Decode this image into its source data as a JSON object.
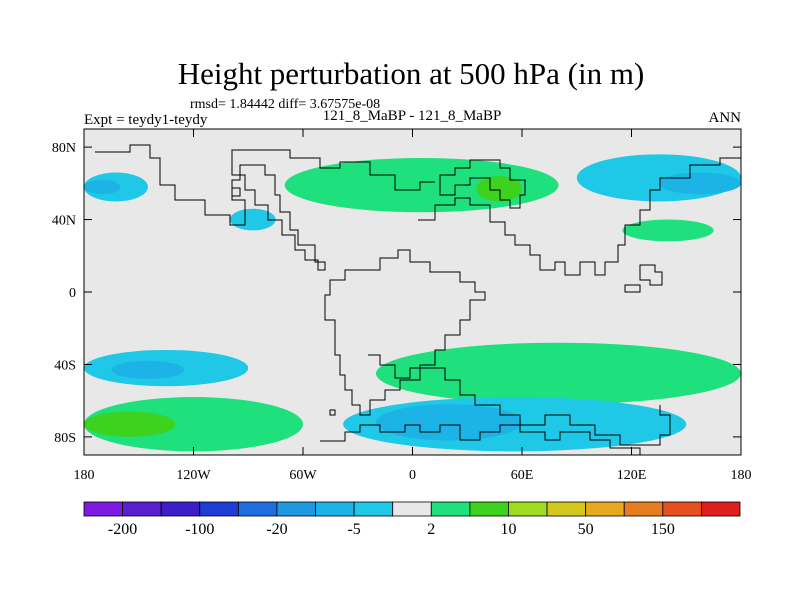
{
  "chart_data": {
    "type": "contour-map",
    "title": "Height perturbation at 500 hPa (in m)",
    "stats_line": "rmsd= 1.84442 diff= 3.67575e-08",
    "left_label": "Expt = teydy1-teydy",
    "center_label": "121_8_MaBP - 121_8_MaBP",
    "right_label": "ANN",
    "x_axis": {
      "range": [
        -180,
        180
      ],
      "ticks": [
        -180,
        -120,
        -60,
        0,
        60,
        120,
        180
      ],
      "tick_labels": [
        "180",
        "120W",
        "60W",
        "0",
        "60E",
        "120E",
        "180"
      ]
    },
    "y_axis": {
      "range": [
        -90,
        90
      ],
      "ticks": [
        80,
        40,
        0,
        -40,
        -80
      ],
      "tick_labels": [
        "80N",
        "40N",
        "0",
        "40S",
        "80S"
      ]
    },
    "colorbar": {
      "colors": [
        "#7d19e0",
        "#5a1fcf",
        "#3c1fc6",
        "#1e3cd6",
        "#1e6ee0",
        "#1e98e0",
        "#1cb4e6",
        "#1ec8e6",
        "#e8e8e8",
        "#1ee07d",
        "#3cd21e",
        "#a0dc1e",
        "#d2c81e",
        "#e6aa1e",
        "#e67d1e",
        "#e6501e",
        "#e01e1e"
      ],
      "labels": [
        "-200",
        "-100",
        "-20",
        "-5",
        "2",
        "10",
        "50",
        "150"
      ]
    },
    "regions": [
      {
        "lon": [
          -180,
          -145
        ],
        "lat": [
          50,
          66
        ],
        "color": "#1ec8e6"
      },
      {
        "lon": [
          -180,
          -160
        ],
        "lat": [
          54,
          62
        ],
        "color": "#1cb4e6"
      },
      {
        "lon": [
          -100,
          -75
        ],
        "lat": [
          34,
          46
        ],
        "color": "#1ec8e6"
      },
      {
        "lon": [
          -70,
          80
        ],
        "lat": [
          44,
          74
        ],
        "color": "#1ee07d"
      },
      {
        "lon": [
          35,
          60
        ],
        "lat": [
          50,
          64
        ],
        "color": "#3cd21e"
      },
      {
        "lon": [
          90,
          180
        ],
        "lat": [
          50,
          76
        ],
        "color": "#1ec8e6"
      },
      {
        "lon": [
          135,
          180
        ],
        "lat": [
          54,
          66
        ],
        "color": "#1cb4e6"
      },
      {
        "lon": [
          115,
          165
        ],
        "lat": [
          28,
          40
        ],
        "color": "#1ee07d"
      },
      {
        "lon": [
          -180,
          -90
        ],
        "lat": [
          -52,
          -32
        ],
        "color": "#1ec8e6"
      },
      {
        "lon": [
          -165,
          -125
        ],
        "lat": [
          -48,
          -38
        ],
        "color": "#1cb4e6"
      },
      {
        "lon": [
          -180,
          -60
        ],
        "lat": [
          -88,
          -58
        ],
        "color": "#1ee07d"
      },
      {
        "lon": [
          -180,
          -130
        ],
        "lat": [
          -80,
          -66
        ],
        "color": "#3cd21e"
      },
      {
        "lon": [
          -20,
          180
        ],
        "lat": [
          -62,
          -28
        ],
        "color": "#1ee07d"
      },
      {
        "lon": [
          -38,
          150
        ],
        "lat": [
          -88,
          -58
        ],
        "color": "#1ec8e6"
      },
      {
        "lon": [
          -20,
          60
        ],
        "lat": [
          -82,
          -62
        ],
        "color": "#1cb4e6"
      }
    ]
  }
}
